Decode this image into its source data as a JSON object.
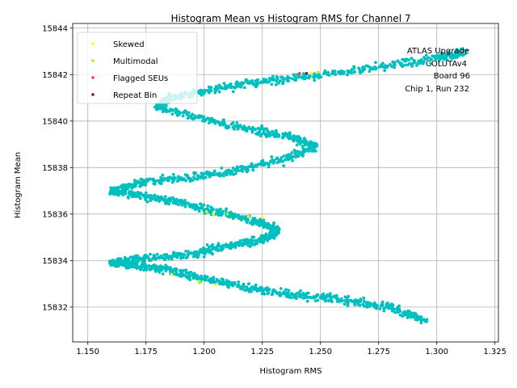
{
  "chart_data": {
    "type": "scatter",
    "title": "Histogram Mean vs Histogram RMS for Channel 7",
    "xlabel": "Histogram RMS",
    "ylabel": "Histogram Mean",
    "xlim": [
      1.1435,
      1.3265
    ],
    "ylim": [
      15830.5,
      15844.2
    ],
    "xticks": [
      1.15,
      1.175,
      1.2,
      1.225,
      1.25,
      1.275,
      1.3,
      1.325
    ],
    "xtick_labels": [
      "1.150",
      "1.175",
      "1.200",
      "1.225",
      "1.250",
      "1.275",
      "1.300",
      "1.325"
    ],
    "yticks": [
      15832,
      15834,
      15836,
      15838,
      15840,
      15842,
      15844
    ],
    "ytick_labels": [
      "15832",
      "15834",
      "15836",
      "15838",
      "15840",
      "15842",
      "15844"
    ],
    "grid": true,
    "legend_position": "top-left",
    "annotation": [
      "ATLAS Upgrade",
      "COLUTAv4",
      "Board 96",
      "Chip 1, Run 232"
    ],
    "main_series": {
      "color": "#00bfbf",
      "path": [
        [
          1.295,
          15831.4
        ],
        [
          1.28,
          15832.0
        ],
        [
          1.26,
          15832.3
        ],
        [
          1.24,
          15832.5
        ],
        [
          1.22,
          15832.8
        ],
        [
          1.2,
          15833.2
        ],
        [
          1.185,
          15833.6
        ],
        [
          1.17,
          15833.8
        ],
        [
          1.16,
          15833.9
        ],
        [
          1.175,
          15834.1
        ],
        [
          1.195,
          15834.3
        ],
        [
          1.21,
          15834.6
        ],
        [
          1.225,
          15834.9
        ],
        [
          1.232,
          15835.3
        ],
        [
          1.222,
          15835.7
        ],
        [
          1.205,
          15836.1
        ],
        [
          1.19,
          15836.5
        ],
        [
          1.172,
          15836.8
        ],
        [
          1.16,
          15837.0
        ],
        [
          1.175,
          15837.4
        ],
        [
          1.195,
          15837.6
        ],
        [
          1.215,
          15837.9
        ],
        [
          1.235,
          15838.4
        ],
        [
          1.248,
          15838.9
        ],
        [
          1.238,
          15839.3
        ],
        [
          1.222,
          15839.6
        ],
        [
          1.2,
          15840.1
        ],
        [
          1.18,
          15840.6
        ],
        [
          1.185,
          15841.0
        ],
        [
          1.205,
          15841.4
        ],
        [
          1.225,
          15841.7
        ],
        [
          1.25,
          15842.0
        ],
        [
          1.275,
          15842.3
        ],
        [
          1.3,
          15842.7
        ],
        [
          1.312,
          15843.0
        ]
      ]
    },
    "series": [
      {
        "name": "Skewed",
        "color": "#ffff00",
        "points": [
          [
            1.201,
            15836.1
          ],
          [
            1.204,
            15836.0
          ],
          [
            1.219,
            15835.9
          ],
          [
            1.225,
            15835.85
          ],
          [
            1.186,
            15833.4
          ],
          [
            1.198,
            15833.1
          ],
          [
            1.205,
            15832.95
          ],
          [
            1.246,
            15842.05
          ]
        ]
      },
      {
        "name": "Multimodal",
        "color": "#99ff00",
        "points": [
          [
            1.198,
            15833.05
          ],
          [
            1.21,
            15836.0
          ],
          [
            1.249,
            15842.1
          ]
        ]
      },
      {
        "name": "Flagged SEUs",
        "color": "#ff3333",
        "points": [
          [
            1.241,
            15842.05
          ]
        ]
      },
      {
        "name": "Repeat Bin",
        "color": "#800080",
        "points": [
          [
            1.244,
            15842.05
          ]
        ]
      }
    ]
  }
}
